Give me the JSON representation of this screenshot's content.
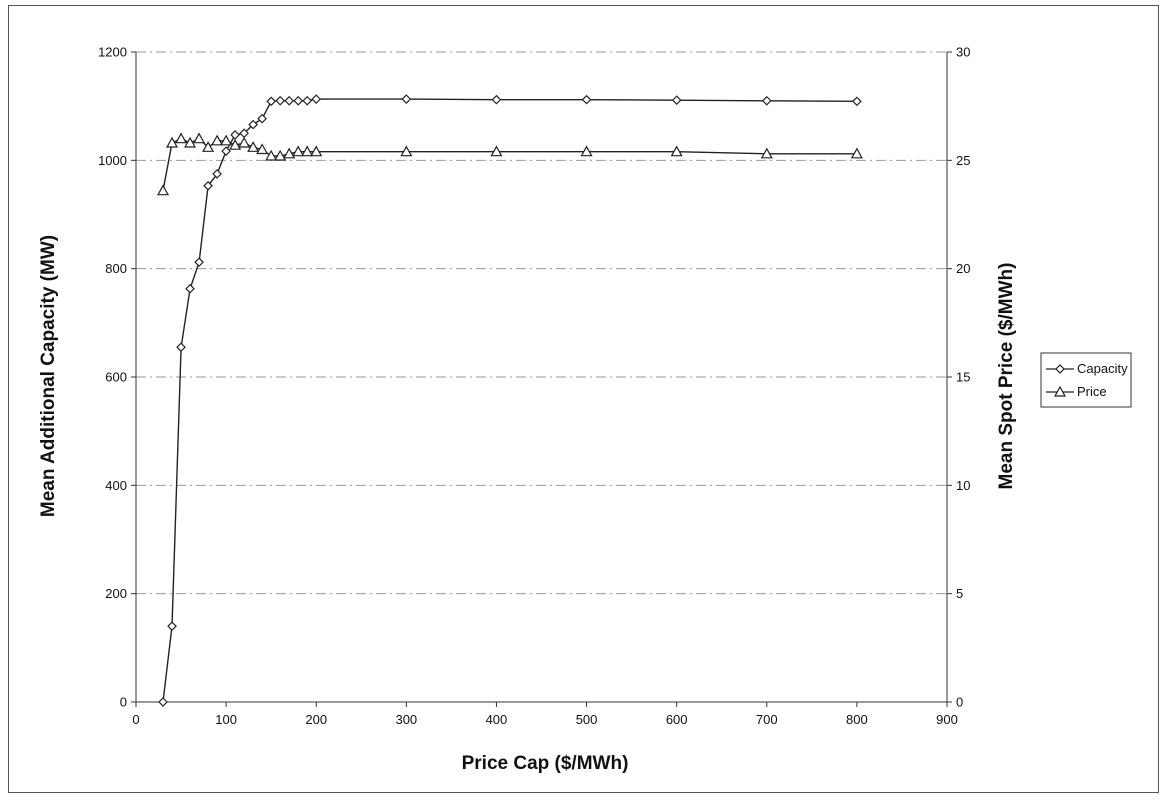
{
  "chart_data": {
    "type": "line",
    "xlabel": "Price Cap ($/MWh)",
    "ylabel_left": "Mean Additional Capacity (MW)",
    "ylabel_right": "Mean Spot Price ($/MWh)",
    "xlim": [
      0,
      900
    ],
    "ylim_left": [
      0,
      1200
    ],
    "ylim_right": [
      0,
      30
    ],
    "xticks": [
      "0",
      "100",
      "200",
      "300",
      "400",
      "500",
      "600",
      "700",
      "800",
      "900"
    ],
    "yticks_left": [
      "0",
      "200",
      "400",
      "600",
      "800",
      "1000",
      "1200"
    ],
    "yticks_right": [
      "0",
      "5",
      "10",
      "15",
      "20",
      "25",
      "30"
    ],
    "grid": "horizontal",
    "legend_position": "right",
    "series": [
      {
        "name": "Capacity",
        "axis": "left",
        "marker": "diamond",
        "x": [
          30,
          40,
          50,
          60,
          70,
          80,
          90,
          100,
          110,
          120,
          130,
          140,
          150,
          160,
          170,
          180,
          190,
          200,
          300,
          400,
          500,
          600,
          700,
          800
        ],
        "y": [
          0,
          140,
          655,
          763,
          812,
          953,
          975,
          1017,
          1047,
          1050,
          1066,
          1077,
          1109,
          1110,
          1110,
          1110,
          1110,
          1113,
          1113,
          1112,
          1112,
          1111,
          1110,
          1109
        ]
      },
      {
        "name": "Price",
        "axis": "right",
        "marker": "triangle",
        "x": [
          30,
          40,
          50,
          60,
          70,
          80,
          90,
          100,
          110,
          120,
          130,
          140,
          150,
          160,
          170,
          180,
          190,
          200,
          300,
          400,
          500,
          600,
          700,
          800
        ],
        "y": [
          23.6,
          25.8,
          26.0,
          25.8,
          26.0,
          25.6,
          25.9,
          25.9,
          25.7,
          25.8,
          25.6,
          25.5,
          25.2,
          25.2,
          25.3,
          25.4,
          25.4,
          25.4,
          25.4,
          25.4,
          25.4,
          25.4,
          25.3,
          25.3
        ]
      }
    ]
  }
}
